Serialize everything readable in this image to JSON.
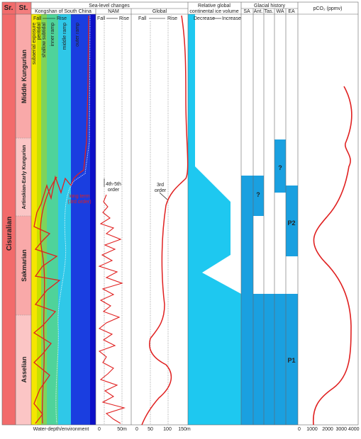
{
  "header": {
    "series": "Sr.",
    "stage": "St.",
    "sea_level": "Sea-level changes",
    "kongshan": "Kongshan of South China",
    "nam": "NAM",
    "global": "Global",
    "ice": [
      "Relative global",
      "continental ice volume"
    ],
    "glacial": "Glacial history",
    "pco2": "pCO₂ (ppmv)"
  },
  "glacial_columns": [
    "SA",
    "Ant.",
    "Tas.",
    "WA",
    "EA"
  ],
  "directions": {
    "kongshan": [
      "Fall",
      "Rise"
    ],
    "nam": [
      "Fall",
      "Rise"
    ],
    "global": [
      "Fall",
      "Rise"
    ],
    "ice": [
      "Decrease",
      "Increase"
    ]
  },
  "series": "Cisuralian",
  "stages": [
    "Middle Kungurian",
    "Artinskian-Early Kungurian",
    "Sakmarian",
    "Asselian"
  ],
  "environments": [
    "subaerial exposure",
    "peritidal",
    "shallow subtidal",
    "inner ramp",
    "middle ramp",
    "outer ramp"
  ],
  "annotations": {
    "nam_order": [
      "4th-5th",
      "order"
    ],
    "global_order": [
      "3rd",
      "order"
    ],
    "long_term": [
      "long term",
      "(3rd order)"
    ],
    "uncertain": [
      "?",
      "?"
    ],
    "phases": [
      "P2",
      "P1"
    ]
  },
  "footer": {
    "water_depth": "Water-depth/environment",
    "nam_scale": [
      "0",
      "50m"
    ],
    "global_scale": [
      "0",
      "50",
      "100",
      "150m"
    ],
    "pco2_scale": [
      "0",
      "1000",
      "2000",
      "3000 4000"
    ]
  }
}
